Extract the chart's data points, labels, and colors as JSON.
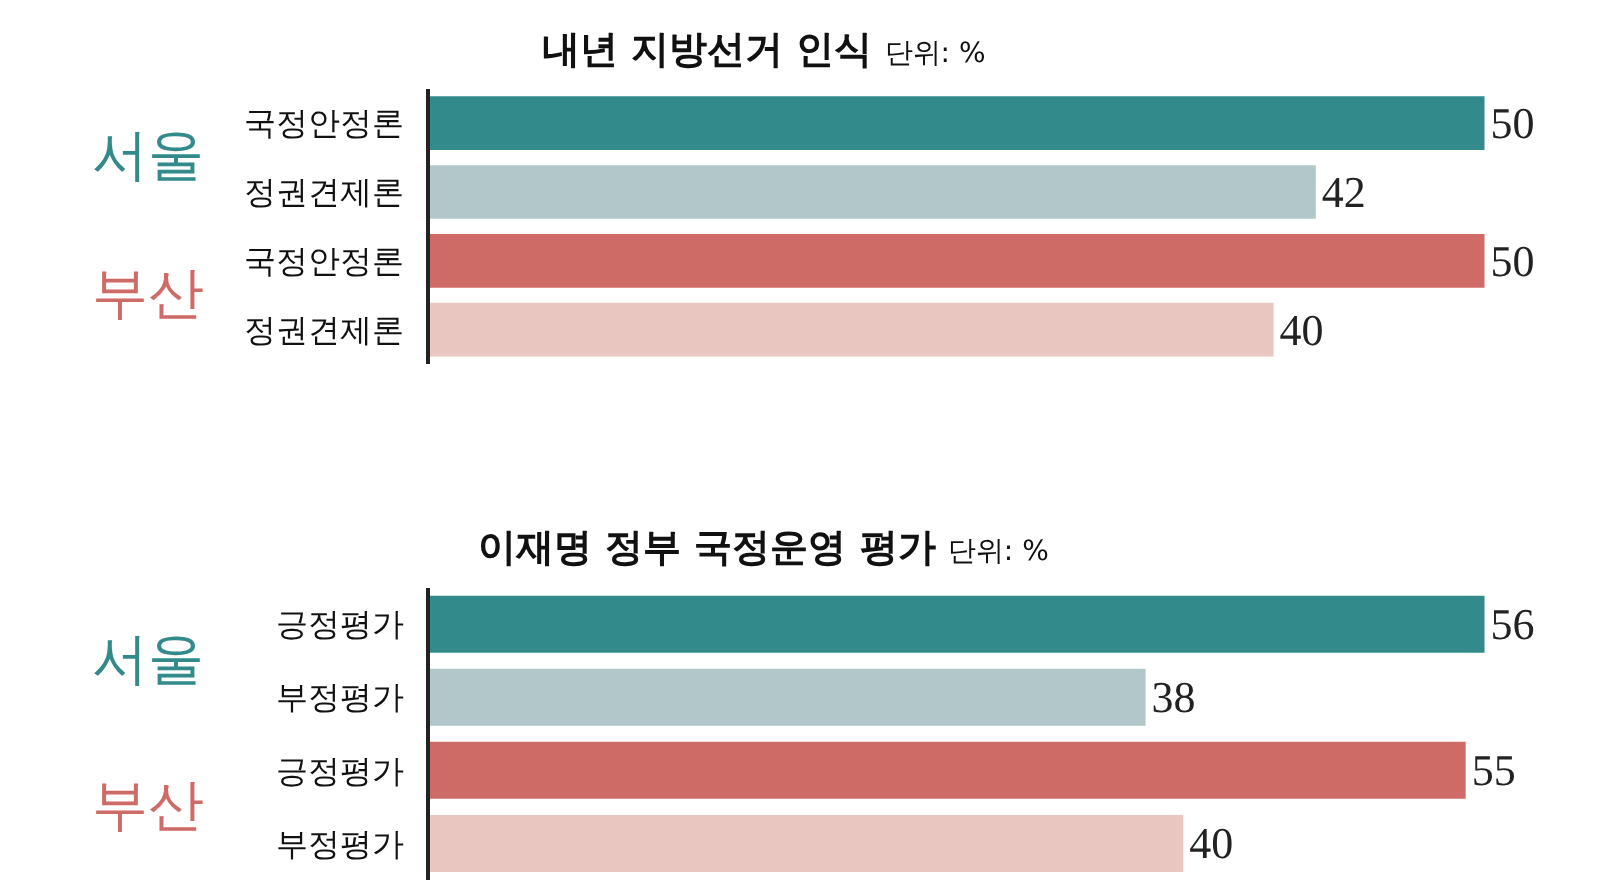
{
  "chart_data": [
    {
      "type": "bar",
      "orientation": "horizontal",
      "title": "내년 지방선거 인식",
      "subtitle": "단위: %",
      "categories": [
        "국정안정론",
        "정권견제론",
        "국정안정론",
        "정권견제론"
      ],
      "values": [
        50,
        42,
        50,
        40
      ],
      "colors": [
        "#338a8a",
        "#b1c7c9",
        "#cf6b66",
        "#e9c6bf"
      ],
      "annotations": [
        "서울",
        "부산"
      ],
      "tick_labels": "y",
      "data_labels": true
    },
    {
      "type": "bar",
      "orientation": "horizontal",
      "title": "이재명 정부 국정운영 평가",
      "subtitle": "단위: %",
      "categories": [
        "긍정평가",
        "부정평가",
        "긍정평가",
        "부정평가"
      ],
      "values": [
        56,
        38,
        55,
        40
      ],
      "colors": [
        "#338a8a",
        "#b1c7c9",
        "#cf6b66",
        "#e9c6bf"
      ],
      "annotations": [
        "서울",
        "부산"
      ],
      "tick_labels": "y",
      "data_labels": true
    }
  ]
}
